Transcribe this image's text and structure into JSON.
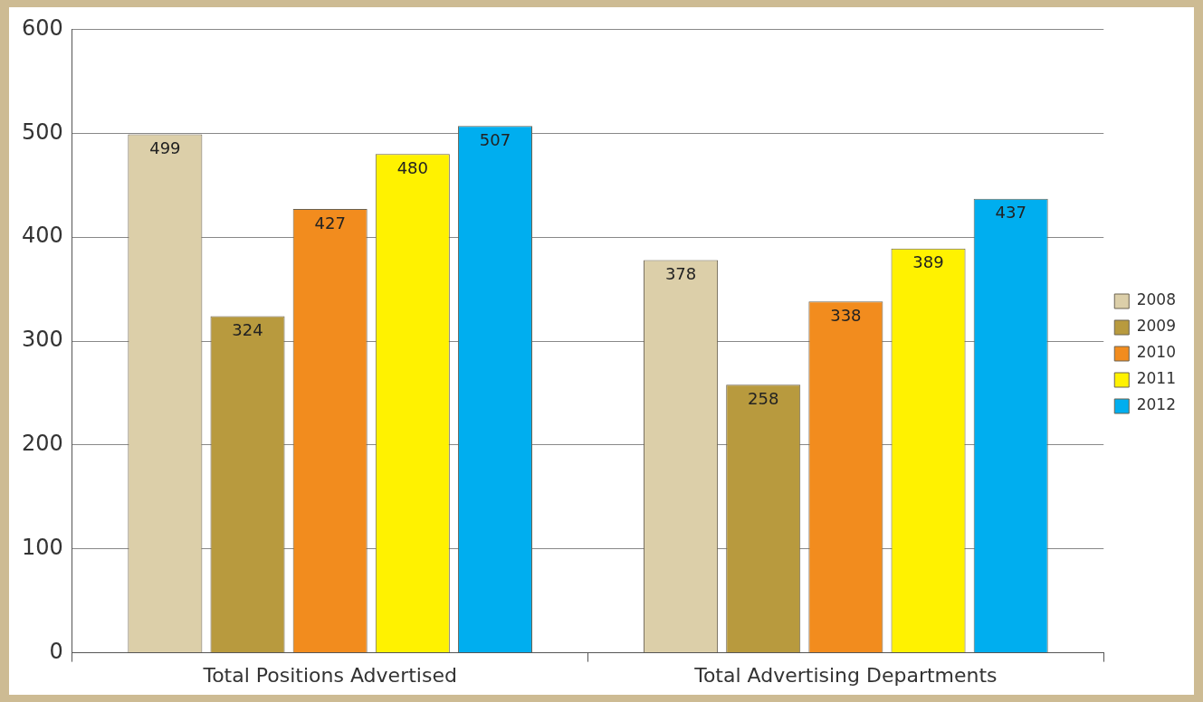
{
  "chart_data": {
    "type": "bar",
    "categories": [
      "Total Positions Advertised",
      "Total Advertising Departments"
    ],
    "series": [
      {
        "name": "2008",
        "color": "#dccfa9",
        "values": [
          499,
          378
        ]
      },
      {
        "name": "2009",
        "color": "#b89a3e",
        "values": [
          324,
          258
        ]
      },
      {
        "name": "2010",
        "color": "#f28c1e",
        "values": [
          427,
          338
        ]
      },
      {
        "name": "2011",
        "color": "#fff200",
        "values": [
          480,
          389
        ]
      },
      {
        "name": "2012",
        "color": "#00aeef",
        "values": [
          507,
          437
        ]
      }
    ],
    "ylim": [
      0,
      600
    ],
    "yticks": [
      0,
      100,
      200,
      300,
      400,
      500,
      600
    ],
    "grid": "y",
    "legend": "right",
    "data_labels": true
  }
}
